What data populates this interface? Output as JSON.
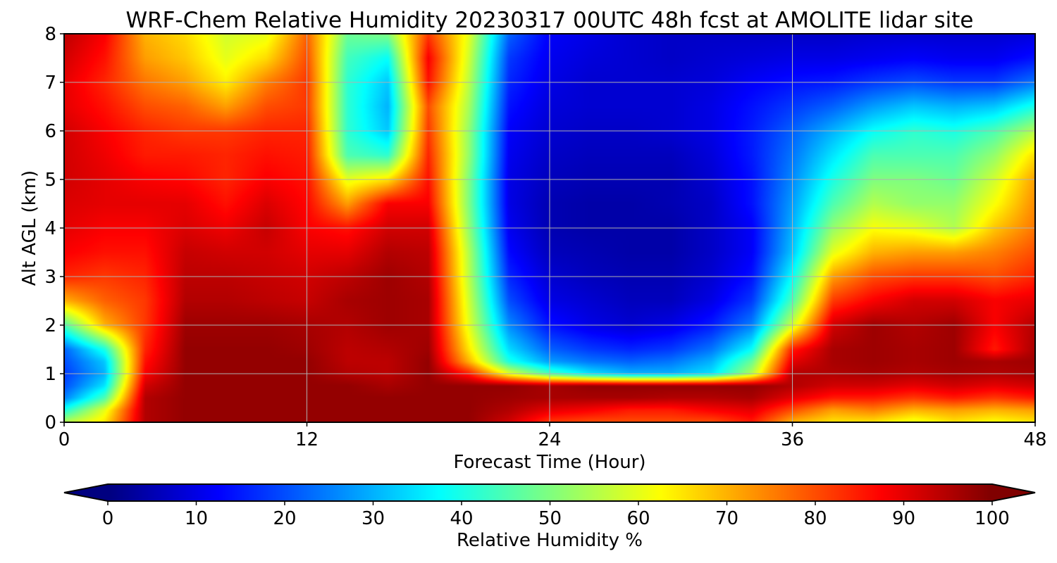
{
  "chart_data": {
    "type": "heatmap",
    "title": "WRF-Chem Relative Humidity 20230317 00UTC 48h fcst at AMOLITE lidar site",
    "xlabel": "Forecast Time (Hour)",
    "ylabel": "Alt AGL (km)",
    "xlim": [
      0,
      48
    ],
    "ylim": [
      0,
      8
    ],
    "xticks": [
      0,
      12,
      24,
      36,
      48
    ],
    "yticks": [
      0,
      1,
      2,
      3,
      4,
      5,
      6,
      7,
      8
    ],
    "grid": true,
    "colormap": "jet",
    "colorbar": {
      "label": "Relative Humidity %",
      "range": [
        0,
        100
      ],
      "ticks": [
        0,
        10,
        20,
        30,
        40,
        50,
        60,
        70,
        80,
        90,
        100
      ],
      "extend": "both",
      "placement": "bottom"
    },
    "x": [
      0,
      2,
      4,
      6,
      8,
      10,
      12,
      14,
      16,
      18,
      20,
      22,
      24,
      26,
      28,
      30,
      32,
      34,
      36,
      38,
      40,
      42,
      44,
      46,
      48
    ],
    "y": [
      0,
      0.25,
      0.5,
      0.75,
      1,
      1.25,
      1.5,
      2,
      2.5,
      3,
      3.5,
      4,
      4.5,
      5,
      5.5,
      6,
      6.5,
      7,
      7.5,
      8
    ],
    "z": [
      [
        55,
        65,
        95,
        98,
        98,
        98,
        98,
        98,
        98,
        98,
        98,
        92,
        82,
        80,
        80,
        80,
        80,
        85,
        70,
        65,
        65,
        60,
        65,
        62,
        65
      ],
      [
        40,
        60,
        95,
        98,
        98,
        98,
        98,
        98,
        98,
        98,
        98,
        95,
        90,
        88,
        85,
        85,
        88,
        90,
        80,
        72,
        75,
        70,
        72,
        70,
        72
      ],
      [
        25,
        45,
        95,
        98,
        98,
        98,
        98,
        98,
        98,
        98,
        98,
        97,
        96,
        96,
        96,
        95,
        95,
        96,
        90,
        85,
        85,
        82,
        85,
        82,
        85
      ],
      [
        20,
        35,
        92,
        98,
        98,
        98,
        98,
        98,
        96,
        98,
        98,
        98,
        96,
        98,
        98,
        98,
        98,
        98,
        95,
        92,
        92,
        90,
        92,
        90,
        92
      ],
      [
        18,
        30,
        88,
        98,
        98,
        98,
        98,
        95,
        94,
        98,
        85,
        60,
        45,
        35,
        30,
        30,
        35,
        55,
        95,
        95,
        96,
        95,
        96,
        95,
        96
      ],
      [
        20,
        32,
        86,
        98,
        98,
        98,
        98,
        94,
        94,
        98,
        70,
        40,
        28,
        24,
        22,
        24,
        30,
        48,
        90,
        96,
        97,
        96,
        97,
        96,
        97
      ],
      [
        22,
        40,
        84,
        98,
        98,
        98,
        97,
        94,
        95,
        97,
        65,
        34,
        22,
        18,
        16,
        18,
        24,
        38,
        85,
        96,
        97,
        96,
        97,
        85,
        96
      ],
      [
        45,
        70,
        82,
        97,
        97,
        97,
        96,
        95,
        97,
        96,
        60,
        26,
        14,
        10,
        8,
        10,
        15,
        25,
        58,
        92,
        97,
        95,
        97,
        88,
        95
      ],
      [
        70,
        78,
        82,
        95,
        95,
        94,
        93,
        96,
        97,
        96,
        58,
        20,
        10,
        8,
        6,
        6,
        10,
        18,
        45,
        82,
        88,
        92,
        92,
        88,
        90
      ],
      [
        84,
        82,
        84,
        94,
        94,
        93,
        92,
        94,
        97,
        95,
        56,
        16,
        8,
        6,
        5,
        5,
        8,
        14,
        38,
        72,
        80,
        82,
        82,
        80,
        84
      ],
      [
        88,
        86,
        86,
        93,
        92,
        92,
        90,
        90,
        95,
        94,
        55,
        13,
        6,
        5,
        4,
        4,
        7,
        12,
        32,
        60,
        70,
        72,
        72,
        75,
        80
      ],
      [
        90,
        88,
        88,
        91,
        89,
        93,
        88,
        86,
        92,
        92,
        52,
        11,
        5,
        4,
        4,
        4,
        7,
        12,
        30,
        52,
        62,
        60,
        55,
        68,
        76
      ],
      [
        91,
        90,
        90,
        90,
        86,
        91,
        87,
        72,
        88,
        88,
        50,
        10,
        5,
        4,
        4,
        5,
        7,
        14,
        28,
        45,
        55,
        52,
        52,
        62,
        74
      ],
      [
        92,
        90,
        88,
        87,
        84,
        88,
        86,
        60,
        65,
        86,
        50,
        10,
        6,
        5,
        5,
        5,
        8,
        14,
        26,
        40,
        50,
        50,
        48,
        58,
        72
      ],
      [
        92,
        89,
        85,
        85,
        84,
        86,
        85,
        45,
        42,
        84,
        52,
        11,
        7,
        6,
        6,
        6,
        9,
        15,
        24,
        35,
        45,
        45,
        45,
        52,
        66
      ],
      [
        92,
        88,
        84,
        82,
        82,
        84,
        84,
        42,
        32,
        82,
        52,
        12,
        8,
        7,
        7,
        8,
        10,
        15,
        22,
        30,
        38,
        42,
        40,
        45,
        55
      ],
      [
        90,
        86,
        80,
        78,
        72,
        80,
        82,
        42,
        30,
        80,
        54,
        14,
        9,
        8,
        8,
        8,
        10,
        14,
        18,
        22,
        28,
        32,
        30,
        32,
        40
      ],
      [
        90,
        84,
        76,
        72,
        64,
        75,
        82,
        42,
        32,
        86,
        56,
        16,
        10,
        8,
        8,
        8,
        9,
        12,
        14,
        15,
        18,
        20,
        18,
        18,
        24
      ],
      [
        92,
        86,
        72,
        68,
        60,
        66,
        80,
        44,
        38,
        88,
        58,
        18,
        11,
        9,
        8,
        7,
        8,
        9,
        10,
        10,
        11,
        12,
        11,
        11,
        14
      ],
      [
        94,
        88,
        70,
        66,
        58,
        60,
        78,
        48,
        50,
        82,
        60,
        22,
        12,
        10,
        8,
        7,
        7,
        7,
        7,
        7,
        8,
        8,
        8,
        8,
        9
      ]
    ]
  }
}
